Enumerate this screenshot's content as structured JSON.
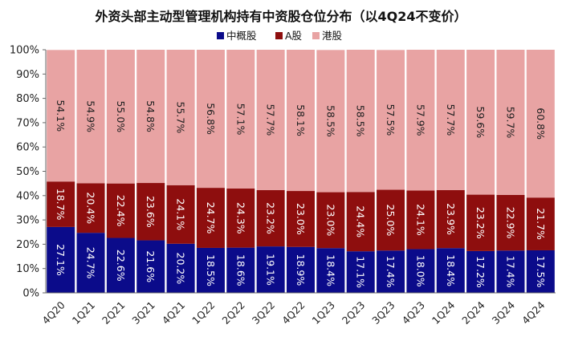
{
  "chart_data": {
    "type": "bar",
    "stacked": true,
    "title": "外资头部主动型管理机构持有中资股仓位分布（以4Q24不变价）",
    "categories": [
      "4Q20",
      "1Q21",
      "2Q21",
      "3Q21",
      "4Q21",
      "1Q22",
      "2Q22",
      "3Q22",
      "4Q22",
      "1Q23",
      "2Q23",
      "3Q23",
      "4Q23",
      "1Q24",
      "2Q24",
      "3Q24",
      "4Q24"
    ],
    "series": [
      {
        "name": "中概股",
        "color": "#0b0b8a",
        "values": [
          27.1,
          24.7,
          22.6,
          21.6,
          20.2,
          18.5,
          18.6,
          19.1,
          18.9,
          18.4,
          17.1,
          17.4,
          18.0,
          18.4,
          17.2,
          17.4,
          17.5
        ],
        "labels": [
          "27.1%",
          "24.7%",
          "22.6%",
          "21.6%",
          "20.2%",
          "18.5%",
          "18.6%",
          "19.1%",
          "18.9%",
          "18.4%",
          "17.1%",
          "17.4%",
          "18.0%",
          "18.4%",
          "17.2%",
          "17.4%",
          "17.5%"
        ]
      },
      {
        "name": "A股",
        "color": "#8e0e0e",
        "values": [
          18.7,
          20.4,
          22.4,
          23.6,
          24.1,
          24.7,
          24.3,
          23.2,
          23.0,
          23.0,
          24.4,
          25.0,
          24.1,
          23.9,
          23.2,
          22.9,
          21.7
        ],
        "labels": [
          "18.7%",
          "20.4%",
          "22.4%",
          "23.6%",
          "24.1%",
          "24.7%",
          "24.3%",
          "23.2%",
          "23.0%",
          "23.0%",
          "24.4%",
          "25.0%",
          "24.1%",
          "23.9%",
          "23.2%",
          "22.9%",
          "21.7%"
        ]
      },
      {
        "name": "港股",
        "color": "#e8a3a3",
        "values": [
          54.1,
          54.9,
          55.0,
          54.8,
          55.7,
          56.8,
          57.1,
          57.7,
          58.1,
          58.5,
          58.5,
          57.5,
          57.9,
          57.7,
          59.6,
          59.7,
          60.8
        ],
        "labels": [
          "54.1%",
          "54.9%",
          "55.0%",
          "54.8%",
          "55.7%",
          "56.8%",
          "57.1%",
          "57.7%",
          "58.1%",
          "58.5%",
          "58.5%",
          "57.5%",
          "57.9%",
          "57.7%",
          "59.6%",
          "59.7%",
          "60.8%"
        ]
      }
    ],
    "yticks": [
      "0%",
      "10%",
      "20%",
      "30%",
      "40%",
      "50%",
      "60%",
      "70%",
      "80%",
      "90%",
      "100%"
    ],
    "ylim": [
      0,
      100
    ],
    "grid": false,
    "legend_position": "top-center"
  }
}
